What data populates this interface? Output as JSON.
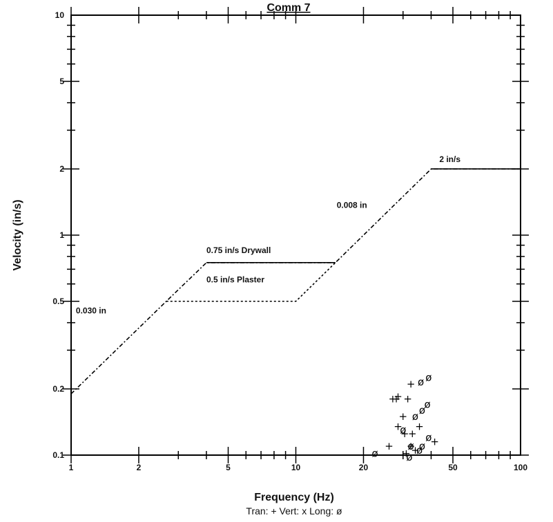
{
  "chart_data": {
    "type": "scatter",
    "title": "Comm 7",
    "xlabel": "Frequency (Hz)",
    "ylabel": "Velocity (in/s)",
    "x_scale": "log",
    "y_scale": "log",
    "xlim": [
      1,
      100
    ],
    "ylim": [
      0.1,
      10
    ],
    "x_ticks": [
      {
        "value": 1,
        "label": "1"
      },
      {
        "value": 2,
        "label": "2"
      },
      {
        "value": 5,
        "label": "5"
      },
      {
        "value": 10,
        "label": "10"
      },
      {
        "value": 20,
        "label": "20"
      },
      {
        "value": 50,
        "label": "50"
      },
      {
        "value": 100,
        "label": "100"
      }
    ],
    "y_ticks": [
      {
        "value": 0.1,
        "label": "0.1"
      },
      {
        "value": 0.2,
        "label": "0.2"
      },
      {
        "value": 0.5,
        "label": "0.5"
      },
      {
        "value": 1,
        "label": "1"
      },
      {
        "value": 2,
        "label": "2"
      },
      {
        "value": 5,
        "label": "5"
      },
      {
        "value": 10,
        "label": "10"
      }
    ],
    "grid": false,
    "criteria_lines": [
      {
        "name": "drywall",
        "style": "dash-dot",
        "points": [
          [
            1,
            0.19
          ],
          [
            2.65,
            0.5
          ],
          [
            4,
            0.75
          ],
          [
            15,
            0.75
          ],
          [
            40,
            2
          ],
          [
            100,
            2
          ]
        ]
      },
      {
        "name": "plaster",
        "style": "dotted",
        "points": [
          [
            2.65,
            0.5
          ],
          [
            10,
            0.5
          ],
          [
            15,
            0.75
          ]
        ]
      }
    ],
    "annotations": [
      {
        "text": "0.030 in",
        "x": 1.05,
        "y": 0.44
      },
      {
        "text": "0.75 in/s Drywall",
        "x": 4.0,
        "y": 0.83
      },
      {
        "text": "0.5 in/s Plaster",
        "x": 4.0,
        "y": 0.61
      },
      {
        "text": "0.008 in",
        "x": 15.2,
        "y": 1.33
      },
      {
        "text": "2 in/s",
        "x": 43.5,
        "y": 2.15
      }
    ],
    "series": [
      {
        "name": "Tran",
        "marker": "+",
        "points": [
          [
            28.5,
            0.185
          ],
          [
            28.0,
            0.18
          ],
          [
            27.0,
            0.18
          ],
          [
            31.5,
            0.18
          ],
          [
            32.5,
            0.21
          ],
          [
            30.0,
            0.15
          ],
          [
            28.5,
            0.135
          ],
          [
            30.5,
            0.125
          ],
          [
            33.0,
            0.125
          ],
          [
            35.5,
            0.135
          ],
          [
            26.0,
            0.11
          ],
          [
            32.5,
            0.11
          ],
          [
            34.0,
            0.105
          ],
          [
            41.5,
            0.115
          ],
          [
            31.0,
            0.102
          ]
        ]
      },
      {
        "name": "Vert",
        "marker": "x",
        "points": []
      },
      {
        "name": "Long",
        "marker": "ø",
        "points": [
          [
            36.0,
            0.215
          ],
          [
            39.0,
            0.225
          ],
          [
            34.0,
            0.15
          ],
          [
            36.5,
            0.16
          ],
          [
            38.5,
            0.17
          ],
          [
            30.0,
            0.13
          ],
          [
            32.5,
            0.11
          ],
          [
            35.5,
            0.105
          ],
          [
            36.5,
            0.11
          ],
          [
            39.0,
            0.12
          ],
          [
            22.5,
            0.102
          ],
          [
            32.0,
            0.098
          ]
        ]
      }
    ],
    "legend": {
      "position": "bottom",
      "text": "Tran: + Vert: x Long: ø"
    }
  }
}
